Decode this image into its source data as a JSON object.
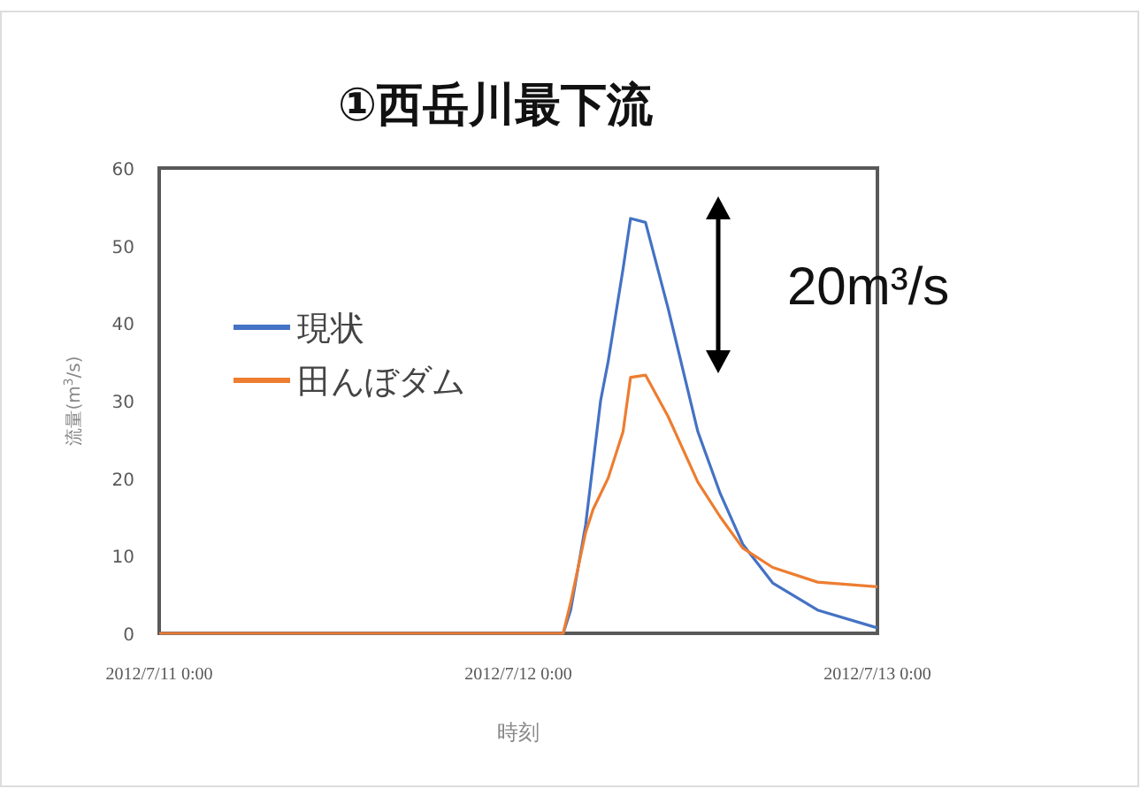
{
  "chart_data": {
    "type": "line",
    "title": "①西岳川最下流",
    "xlabel": "時刻",
    "ylabel": "流量(m$^{3}$/s)",
    "x": [
      "2012-07-11T00:00",
      "2012-07-12T00:00",
      "2012-07-12T03:00",
      "2012-07-12T03:30",
      "2012-07-12T04:30",
      "2012-07-12T05:00",
      "2012-07-12T05:30",
      "2012-07-12T06:00",
      "2012-07-12T06:30",
      "2012-07-12T07:00",
      "2012-07-12T07:30",
      "2012-07-12T08:30",
      "2012-07-12T10:00",
      "2012-07-12T12:00",
      "2012-07-12T13:30",
      "2012-07-12T15:00",
      "2012-07-12T17:00",
      "2012-07-12T20:00",
      "2012-07-13T00:00"
    ],
    "series": [
      {
        "name": "現状",
        "color": "#4472c4",
        "values": [
          0,
          0,
          0,
          3,
          14,
          22,
          30,
          35,
          41,
          47,
          53.5,
          53,
          42,
          26,
          18,
          11.5,
          6.5,
          3,
          0.7
        ]
      },
      {
        "name": "田んぼダム",
        "color": "#ed7d31",
        "values": [
          0,
          0,
          0,
          4,
          13,
          16,
          18,
          20,
          23,
          26,
          33,
          33.3,
          28,
          19.5,
          15,
          11,
          8.5,
          6.6,
          6
        ]
      }
    ],
    "xlim": [
      "2012-07-11T00:00",
      "2012-07-13T00:00"
    ],
    "xticks": [
      {
        "value": "2012-07-11T00:00",
        "label": "2012/7/11 0:00"
      },
      {
        "value": "2012-07-12T00:00",
        "label": "2012/7/12 0:00"
      },
      {
        "value": "2012-07-13T00:00",
        "label": "2012/7/13 0:00"
      }
    ],
    "ylim": [
      0,
      60
    ],
    "yticks": [
      0,
      10,
      20,
      30,
      40,
      50,
      60
    ],
    "grid": false,
    "legend": "left",
    "marker": "none",
    "line_style": "solid",
    "annotations": [
      "20m³/s"
    ]
  }
}
